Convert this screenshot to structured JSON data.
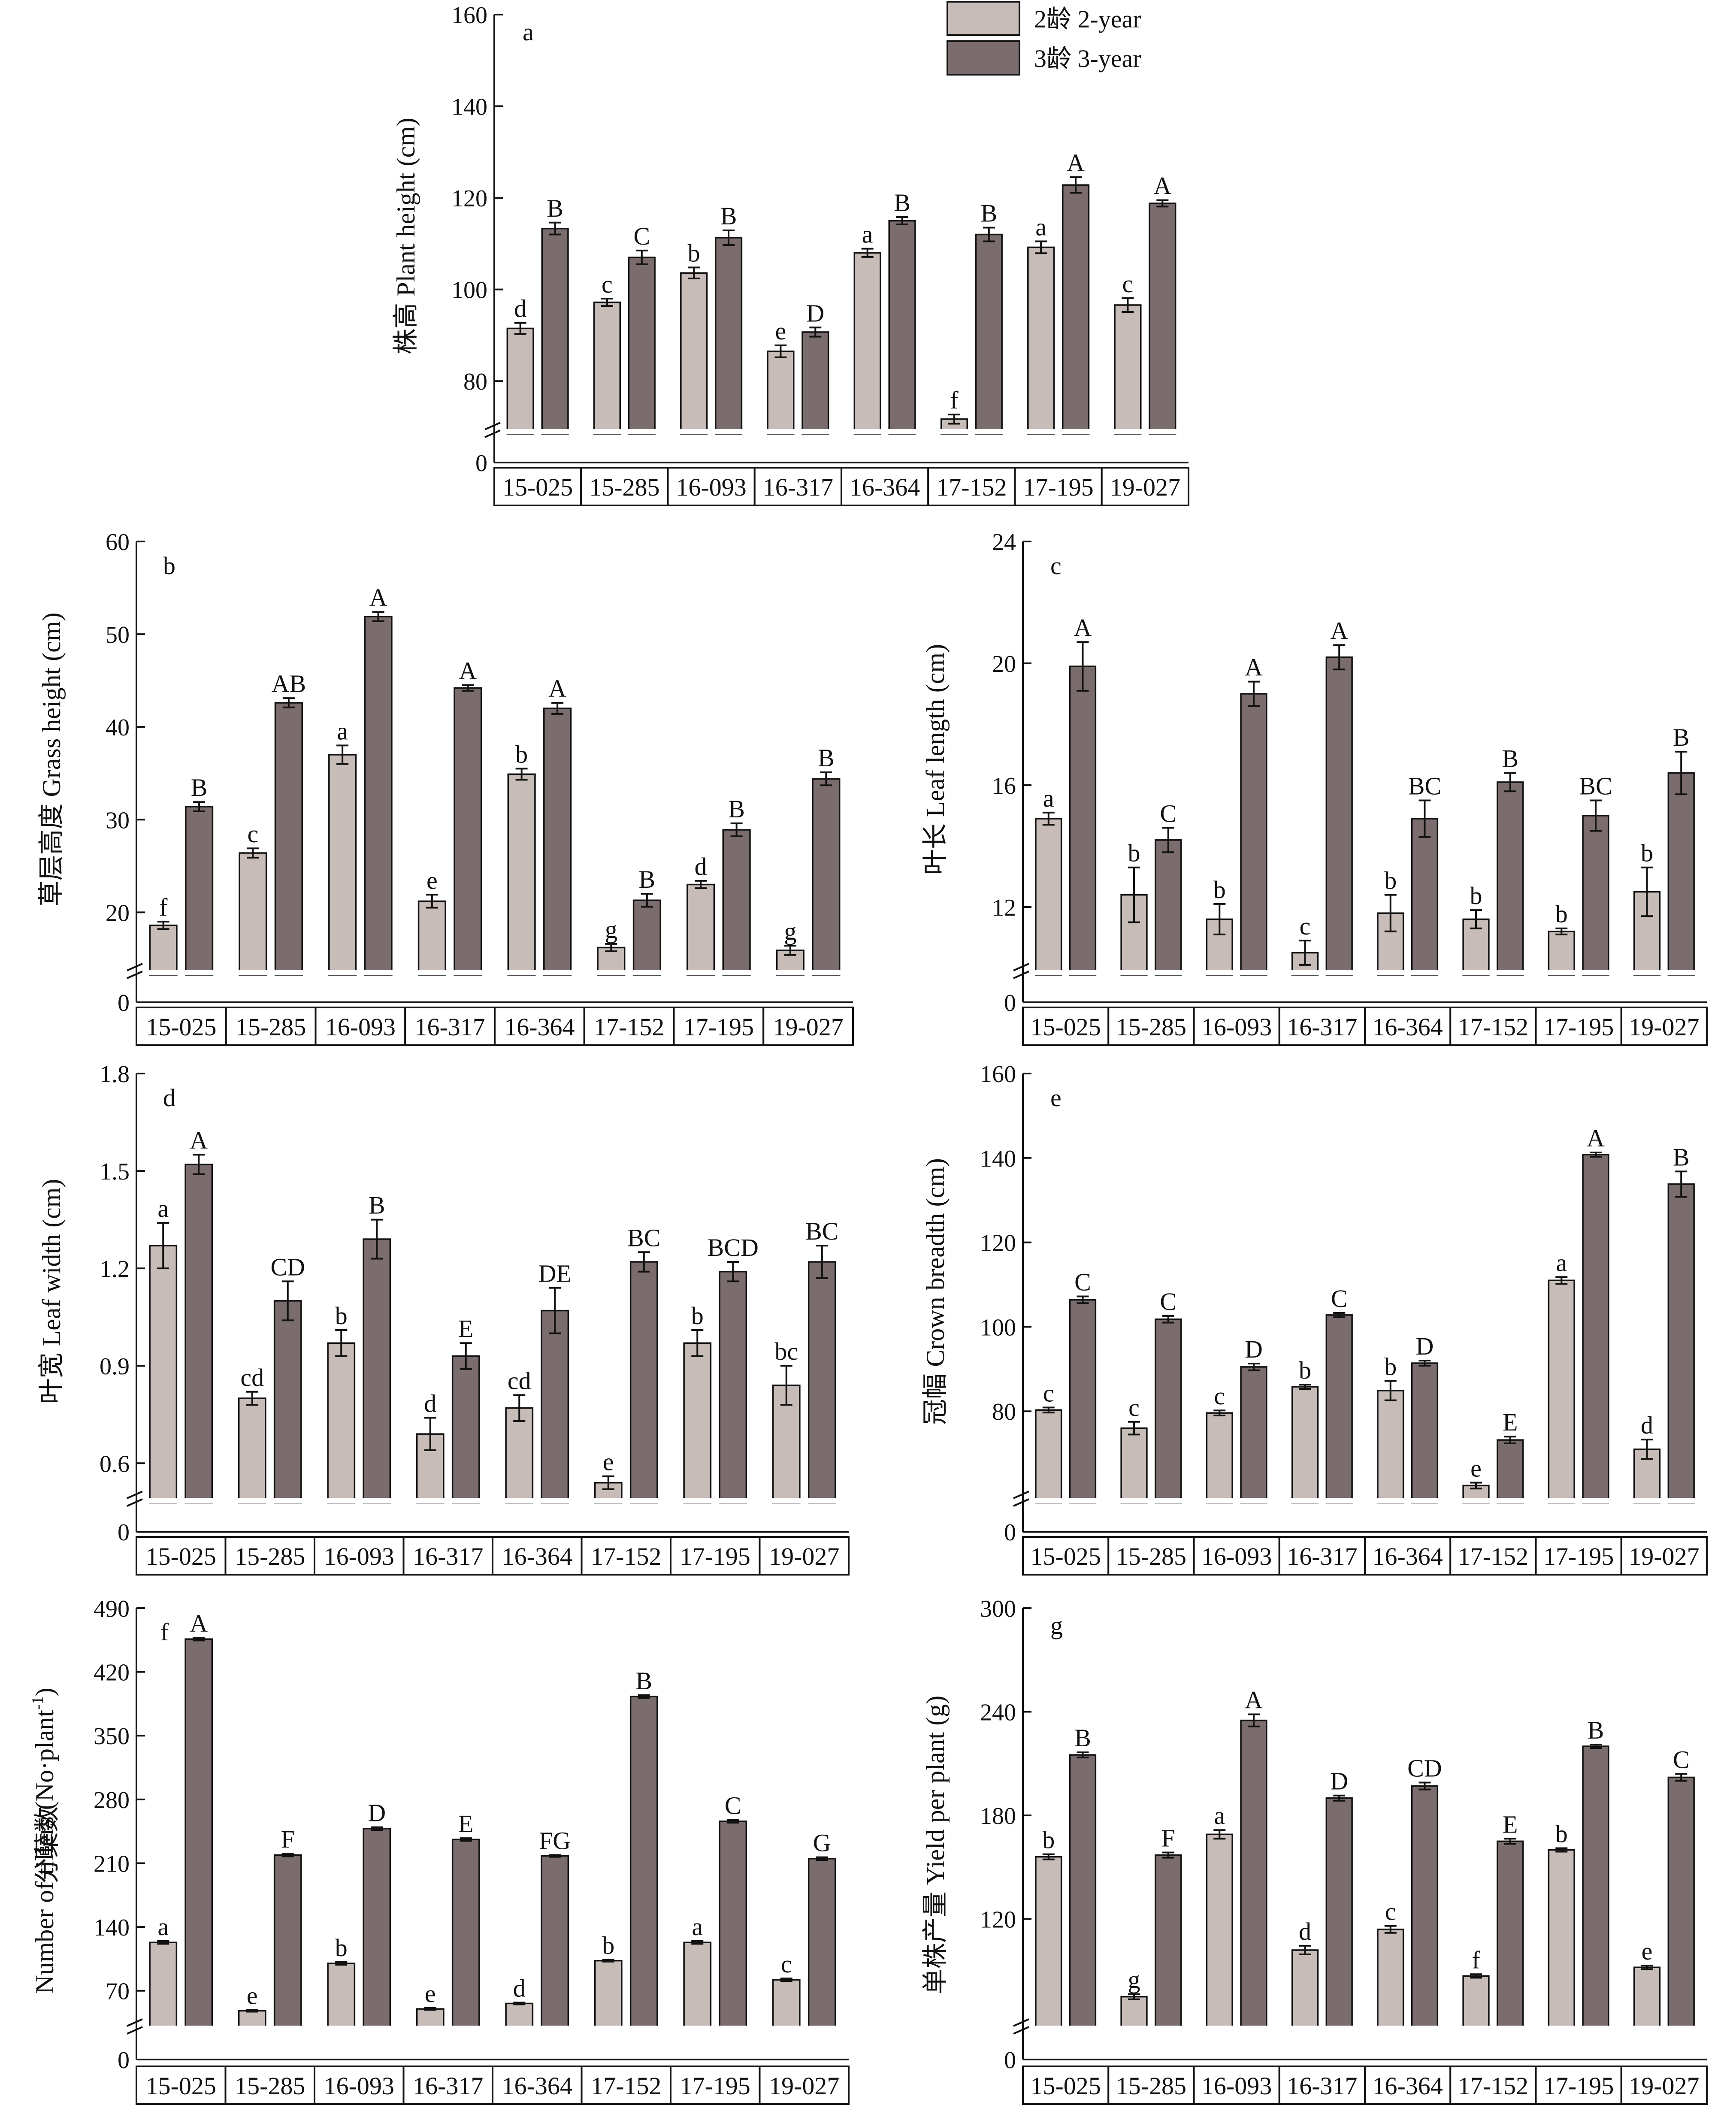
{
  "legend": {
    "items": [
      {
        "label": "2龄 2-year",
        "color": "#c8bcb8"
      },
      {
        "label": "3龄 3-year",
        "color": "#7b6d6d"
      }
    ]
  },
  "chart_data": [
    {
      "panel": "a",
      "type": "bar",
      "ylabel": "株高 Plant height (cm)",
      "yticks": [
        80,
        100,
        120,
        140,
        160
      ],
      "ylim": [
        70,
        160
      ],
      "broken_axis_zero": "0",
      "categories": [
        "15-025",
        "15-285",
        "16-093",
        "16-317",
        "16-364",
        "17-152",
        "17-195",
        "19-027"
      ],
      "series": [
        {
          "name": "2龄 2-year",
          "values": [
            91.5,
            97.2,
            103.6,
            86.5,
            108.0,
            71.7,
            109.2,
            96.6
          ],
          "errors": [
            1.2,
            0.8,
            1.2,
            1.3,
            0.9,
            1.0,
            1.3,
            1.5
          ],
          "letters": [
            "d",
            "c",
            "b",
            "e",
            "a",
            "f",
            "a",
            "c"
          ]
        },
        {
          "name": "3龄 3-year",
          "values": [
            113.3,
            107.0,
            111.3,
            90.7,
            115.0,
            112.0,
            122.8,
            118.8
          ],
          "errors": [
            1.3,
            1.5,
            1.6,
            1.0,
            0.8,
            1.5,
            1.7,
            0.7
          ],
          "letters": [
            "B",
            "C",
            "B",
            "D",
            "B",
            "B",
            "A",
            "A"
          ]
        }
      ]
    },
    {
      "panel": "b",
      "type": "bar",
      "ylabel": "草层高度 Grass height (cm)",
      "yticks": [
        20,
        30,
        40,
        50,
        60
      ],
      "ylim": [
        14,
        60
      ],
      "broken_axis_zero": "0",
      "categories": [
        "15-025",
        "15-285",
        "16-093",
        "16-317",
        "16-364",
        "17-152",
        "17-195",
        "19-027"
      ],
      "series": [
        {
          "name": "2龄 2-year",
          "values": [
            18.6,
            26.4,
            37.0,
            21.2,
            34.9,
            16.2,
            23.0,
            15.9
          ],
          "errors": [
            0.4,
            0.5,
            1.0,
            0.7,
            0.6,
            0.4,
            0.4,
            0.5
          ],
          "letters": [
            "f",
            "c",
            "a",
            "e",
            "b",
            "g",
            "d",
            "g"
          ]
        },
        {
          "name": "3龄 3-year",
          "values": [
            31.4,
            42.6,
            51.9,
            44.2,
            42.0,
            21.3,
            28.9,
            34.4
          ],
          "errors": [
            0.5,
            0.5,
            0.5,
            0.3,
            0.6,
            0.7,
            0.7,
            0.7
          ],
          "letters": [
            "B",
            "AB",
            "A",
            "A",
            "A",
            "B",
            "B",
            "B"
          ]
        }
      ]
    },
    {
      "panel": "c",
      "type": "bar",
      "ylabel": "叶长 Leaf length (cm)",
      "yticks": [
        12,
        16,
        20,
        24
      ],
      "ylim": [
        10,
        24
      ],
      "broken_axis_zero": "0",
      "categories": [
        "15-025",
        "15-285",
        "16-093",
        "16-317",
        "16-364",
        "17-152",
        "17-195",
        "19-027"
      ],
      "series": [
        {
          "name": "2龄 2-year",
          "values": [
            14.9,
            12.4,
            11.6,
            10.5,
            11.8,
            11.6,
            11.2,
            12.5
          ],
          "errors": [
            0.2,
            0.9,
            0.5,
            0.4,
            0.6,
            0.3,
            0.1,
            0.8
          ],
          "letters": [
            "a",
            "b",
            "b",
            "c",
            "b",
            "b",
            "b",
            "b"
          ]
        },
        {
          "name": "3龄 3-year",
          "values": [
            19.9,
            14.2,
            19.0,
            20.2,
            14.9,
            16.1,
            15.0,
            16.4
          ],
          "errors": [
            0.8,
            0.4,
            0.4,
            0.4,
            0.6,
            0.3,
            0.5,
            0.7
          ],
          "letters": [
            "A",
            "C",
            "A",
            "A",
            "BC",
            "B",
            "BC",
            "B"
          ]
        }
      ]
    },
    {
      "panel": "d",
      "type": "bar",
      "ylabel": "叶宽 Leaf width (cm)",
      "yticks": [
        0.6,
        0.9,
        1.2,
        1.5,
        1.8
      ],
      "yticklabels": [
        "0.6",
        "0.9",
        "1.2",
        "1.5",
        "1.8"
      ],
      "ylim": [
        0.5,
        1.8
      ],
      "broken_axis_zero": "0",
      "categories": [
        "15-025",
        "15-285",
        "16-093",
        "16-317",
        "16-364",
        "17-152",
        "17-195",
        "19-027"
      ],
      "series": [
        {
          "name": "2龄 2-year",
          "values": [
            1.27,
            0.8,
            0.97,
            0.69,
            0.77,
            0.54,
            0.97,
            0.84
          ],
          "errors": [
            0.07,
            0.02,
            0.04,
            0.05,
            0.04,
            0.02,
            0.04,
            0.06
          ],
          "letters": [
            "a",
            "cd",
            "b",
            "d",
            "cd",
            "e",
            "b",
            "bc"
          ]
        },
        {
          "name": "3龄 3-year",
          "values": [
            1.52,
            1.1,
            1.29,
            0.93,
            1.07,
            1.22,
            1.19,
            1.22
          ],
          "errors": [
            0.03,
            0.06,
            0.06,
            0.04,
            0.07,
            0.03,
            0.03,
            0.05
          ],
          "letters": [
            "A",
            "CD",
            "B",
            "E",
            "DE",
            "BC",
            "BCD",
            "BC"
          ]
        }
      ]
    },
    {
      "panel": "e",
      "type": "bar",
      "ylabel": "冠幅 Crown breadth (cm)",
      "yticks": [
        80,
        100,
        120,
        140,
        160
      ],
      "ylim": [
        60,
        160
      ],
      "broken_axis_zero": "0",
      "categories": [
        "15-025",
        "15-285",
        "16-093",
        "16-317",
        "16-364",
        "17-152",
        "17-195",
        "19-027"
      ],
      "series": [
        {
          "name": "2龄 2-year",
          "values": [
            80.3,
            76.0,
            79.6,
            85.8,
            84.9,
            62.4,
            111.0,
            71.0
          ],
          "errors": [
            0.6,
            1.5,
            0.6,
            0.5,
            2.3,
            0.7,
            0.8,
            2.3
          ],
          "letters": [
            "c",
            "c",
            "c",
            "b",
            "b",
            "e",
            "a",
            "d"
          ]
        },
        {
          "name": "3龄 3-year",
          "values": [
            106.4,
            101.8,
            90.5,
            102.8,
            91.4,
            73.2,
            140.8,
            133.8
          ],
          "errors": [
            0.8,
            0.8,
            0.8,
            0.5,
            0.6,
            0.8,
            0.5,
            3.0
          ],
          "letters": [
            "C",
            "C",
            "D",
            "C",
            "D",
            "E",
            "A",
            "B"
          ]
        }
      ]
    },
    {
      "panel": "f",
      "type": "bar",
      "ylabel_line1": "分蘖数",
      "ylabel_line2": "Number of tillers (No·plant",
      "ylabel_sup": "-1",
      "ylabel_close": ")",
      "yticks": [
        70,
        140,
        210,
        280,
        350,
        420,
        490
      ],
      "ylim": [
        35,
        490
      ],
      "broken_axis_zero": "0",
      "categories": [
        "15-025",
        "15-285",
        "16-093",
        "16-317",
        "16-364",
        "17-152",
        "17-195",
        "19-027"
      ],
      "series": [
        {
          "name": "2龄 2-year",
          "values": [
            123,
            48,
            100,
            50,
            56,
            103,
            123,
            82
          ],
          "errors": [
            1.5,
            1.0,
            1.5,
            1.0,
            1.0,
            1.0,
            1.5,
            1.5
          ],
          "letters": [
            "a",
            "e",
            "b",
            "e",
            "d",
            "b",
            "a",
            "c"
          ]
        },
        {
          "name": "3龄 3-year",
          "values": [
            456,
            219,
            248,
            236,
            218,
            393,
            256,
            215
          ],
          "errors": [
            1.5,
            1.5,
            1.5,
            1.5,
            1.0,
            1.5,
            1.5,
            1.5
          ],
          "letters": [
            "A",
            "F",
            "D",
            "E",
            "FG",
            "B",
            "C",
            "G"
          ]
        }
      ]
    },
    {
      "panel": "g",
      "type": "bar",
      "ylabel": "单株产量 Yield per plant (g)",
      "yticks": [
        120,
        180,
        240,
        300
      ],
      "ylim": [
        60,
        300
      ],
      "broken_axis_zero": "0",
      "categories": [
        "15-025",
        "15-285",
        "16-093",
        "16-317",
        "16-364",
        "17-152",
        "17-195",
        "19-027"
      ],
      "series": [
        {
          "name": "2龄 2-year",
          "values": [
            156,
            75,
            169,
            102,
            114,
            87,
            160,
            92
          ],
          "errors": [
            1.5,
            1.5,
            2.5,
            2.5,
            2.0,
            1.0,
            1.0,
            1.0
          ],
          "letters": [
            "b",
            "g",
            "a",
            "d",
            "c",
            "f",
            "b",
            "e"
          ]
        },
        {
          "name": "3龄 3-year",
          "values": [
            215,
            157,
            235,
            190,
            197,
            165,
            220,
            202
          ],
          "errors": [
            1.5,
            1.5,
            3.5,
            1.5,
            2.0,
            1.5,
            1.0,
            2.0
          ],
          "letters": [
            "B",
            "F",
            "A",
            "D",
            "CD",
            "E",
            "B",
            "C"
          ]
        }
      ]
    }
  ]
}
